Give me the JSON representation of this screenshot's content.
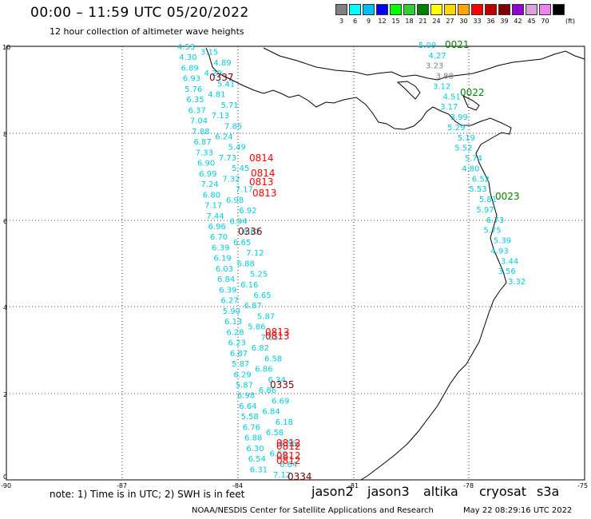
{
  "header": {
    "title": "00:00 – 11:59 UTC 05/20/2022",
    "subtitle": "12 hour collection of altimeter wave heights"
  },
  "legend": {
    "unit": "(ft)",
    "swatches": [
      {
        "label": "3",
        "color": "#808080"
      },
      {
        "label": "6",
        "color": "#00ffff"
      },
      {
        "label": "9",
        "color": "#00bfff"
      },
      {
        "label": "12",
        "color": "#0000ff"
      },
      {
        "label": "15",
        "color": "#00ff00"
      },
      {
        "label": "18",
        "color": "#32cd32"
      },
      {
        "label": "21",
        "color": "#008000"
      },
      {
        "label": "24",
        "color": "#ffff00"
      },
      {
        "label": "27",
        "color": "#ffd700"
      },
      {
        "label": "30",
        "color": "#ffa500"
      },
      {
        "label": "33",
        "color": "#ff0000"
      },
      {
        "label": "36",
        "color": "#c00000"
      },
      {
        "label": "39",
        "color": "#800000"
      },
      {
        "label": "42",
        "color": "#9400d3"
      },
      {
        "label": "45",
        "color": "#dda0dd"
      },
      {
        "label": "70",
        "color": "#ee82ee"
      },
      {
        "label": "",
        "color": "#000000"
      }
    ]
  },
  "axes": {
    "lat_labels": [
      "10",
      "8",
      "6",
      "4",
      "2",
      "0"
    ],
    "lon_labels": [
      "-90",
      "-87",
      "-84",
      "-81",
      "-78",
      "-75"
    ]
  },
  "tracks": {
    "west_values": [
      "4.53",
      "3.15",
      "4.30",
      "4.89",
      "6.89",
      "4.29",
      "6.93",
      "5.41",
      "5.76",
      "4.81",
      "6.35",
      "5.71",
      "6.37",
      "7.13",
      "7.04",
      "7.85",
      "7.88",
      "6.24",
      "6.87",
      "5.49",
      "7.33",
      "7.73",
      "6.90",
      "5.45",
      "6.99",
      "7.32",
      "7.24",
      "7.17",
      "6.80",
      "6.98",
      "7.17",
      "6.92",
      "7.44",
      "6.94",
      "6.96",
      "6.62",
      "6.70",
      "6.65",
      "6.39",
      "7.12",
      "6.19",
      "6.88",
      "6.03",
      "5.25",
      "6.84",
      "6.16",
      "6.39",
      "6.65",
      "6.27",
      "6.87",
      "5.90",
      "5.87",
      "6.13",
      "5.86",
      "6.28",
      "7.05",
      "6.23",
      "6.82",
      "6.87",
      "6.58",
      "5.87",
      "6.86",
      "6.29",
      "6.34",
      "5.87",
      "6.86",
      "6.98",
      "6.69",
      "6.64",
      "6.84",
      "5.58",
      "6.18",
      "6.76",
      "6.58",
      "6.88",
      "6.56",
      "6.30",
      "6.50",
      "6.54",
      "6.64",
      "6.31",
      "7.12"
    ],
    "east_values": [
      "5.09",
      "4.27",
      "3.23",
      "3.88",
      "3.12",
      "4.51",
      "3.17",
      "3.99",
      "5.29",
      "5.19",
      "5.52",
      "5.74",
      "4.80",
      "6.52",
      "5.53",
      "5.81",
      "5.97",
      "6.73",
      "5.75",
      "5.39",
      "4.93",
      "3.44",
      "3.56",
      "3.32"
    ],
    "cycle_tags": [
      {
        "text": "0021",
        "color": "#008000"
      },
      {
        "text": "0022",
        "color": "#008000"
      },
      {
        "text": "0023",
        "color": "#008000"
      },
      {
        "text": "0337",
        "color": "#800000"
      },
      {
        "text": "0814",
        "color": "#ff0000"
      },
      {
        "text": "0814",
        "color": "#ff0000"
      },
      {
        "text": "0813",
        "color": "#ff0000"
      },
      {
        "text": "0813",
        "color": "#ff0000"
      },
      {
        "text": "0336",
        "color": "#800000"
      },
      {
        "text": "0813",
        "color": "#ff0000"
      },
      {
        "text": "0813",
        "color": "#ff0000"
      },
      {
        "text": "0335",
        "color": "#800000"
      },
      {
        "text": "0812",
        "color": "#ff0000"
      },
      {
        "text": "0812",
        "color": "#ff0000"
      },
      {
        "text": "0812",
        "color": "#ff0000"
      },
      {
        "text": "0812",
        "color": "#ff0000"
      },
      {
        "text": "0334",
        "color": "#800000"
      }
    ]
  },
  "note": "note: 1) Time is in UTC; 2) SWH is in feet",
  "satellites": [
    {
      "name": "jason2",
      "color": "#0000ff"
    },
    {
      "name": "jason3",
      "color": "#008000"
    },
    {
      "name": "altika",
      "color": "#ffa500"
    },
    {
      "name": "cryosat",
      "color": "#ff0000"
    },
    {
      "name": "s3a",
      "color": "#800000"
    }
  ],
  "footer": {
    "credit": "NOAA/NESDIS Center for Satellite Applications and Research",
    "timestamp": "May 22 08:29:16 UTC 2022"
  }
}
